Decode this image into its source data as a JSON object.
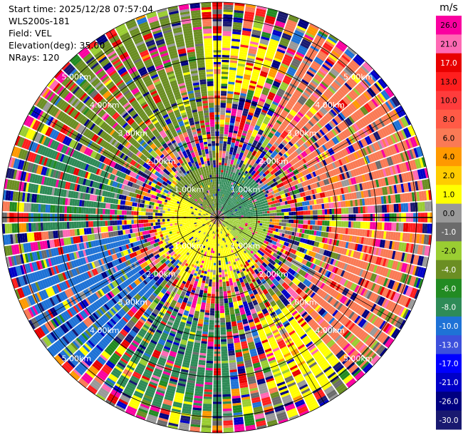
{
  "info": {
    "start_time": "Start time: 2025/12/28 07:57:04",
    "station": "WLS200s-181",
    "field": "Field: VEL",
    "elevation": "Elevation(deg): 35.00",
    "nrays": "NRays: 120"
  },
  "chart_data": {
    "type": "heatmap",
    "projection": "polar-ppi",
    "field": "VEL",
    "units": "m/s",
    "nrays": 120,
    "max_range_km": 5.4,
    "range_rings_km": [
      1,
      2,
      3,
      4,
      5
    ],
    "range_ring_labels": [
      "1.00km",
      "2.00km",
      "3.00km",
      "4.00km",
      "5.00km"
    ],
    "colorbar": {
      "title": "m/s",
      "ticks": [
        "26.0",
        "21.0",
        "17.0",
        "13.0",
        "10.0",
        "8.0",
        "6.0",
        "4.0",
        "2.0",
        "1.0",
        "0.0",
        "-1.0",
        "-2.0",
        "-4.0",
        "-6.0",
        "-8.0",
        "-10.0",
        "-13.0",
        "-17.0",
        "-21.0",
        "-26.0",
        "-30.0"
      ],
      "colors": [
        "#fa00a0",
        "#ff69b4",
        "#e80000",
        "#ff1e1e",
        "#ff3c3c",
        "#ff5a46",
        "#fa7a55",
        "#ff9900",
        "#ffcc00",
        "#ffff00",
        "#999999",
        "#6b6b6b",
        "#9acd32",
        "#6b8e23",
        "#228b22",
        "#2e8b57",
        "#1e72d6",
        "#3c50dc",
        "#0000ff",
        "#0000c8",
        "#000080",
        "#191970"
      ]
    },
    "sectors": [
      {
        "az_from": 300,
        "az_to": 355,
        "r_from_km": 2.3,
        "r_to_km": 5.2,
        "color": "#6b8e23"
      },
      {
        "az_from": 330,
        "az_to": 20,
        "r_from_km": 3.2,
        "r_to_km": 4.6,
        "color": "#ffff00"
      },
      {
        "az_from": 30,
        "az_to": 85,
        "r_from_km": 2.3,
        "r_to_km": 5.2,
        "color": "#fa7a55"
      },
      {
        "az_from": 95,
        "az_to": 140,
        "r_from_km": 2.8,
        "r_to_km": 5.2,
        "color": "#fa7a55"
      },
      {
        "az_from": 130,
        "az_to": 160,
        "r_from_km": 2.8,
        "r_to_km": 5.0,
        "color": "#ffff00"
      },
      {
        "az_from": 175,
        "az_to": 215,
        "r_from_km": 2.6,
        "r_to_km": 5.0,
        "color": "#2e8b57"
      },
      {
        "az_from": 220,
        "az_to": 260,
        "r_from_km": 2.3,
        "r_to_km": 5.2,
        "color": "#1e72d6"
      },
      {
        "az_from": 265,
        "az_to": 295,
        "r_from_km": 2.5,
        "r_to_km": 4.8,
        "color": "#2e8b57"
      },
      {
        "az_from": 0,
        "az_to": 90,
        "r_from_km": 0.2,
        "r_to_km": 1.3,
        "color": "#2e8b57"
      },
      {
        "az_from": 300,
        "az_to": 360,
        "r_from_km": 0.2,
        "r_to_km": 1.3,
        "color": "#6b8e23"
      },
      {
        "az_from": 90,
        "az_to": 140,
        "r_from_km": 0.2,
        "r_to_km": 1.3,
        "color": "#9acd32"
      },
      {
        "az_from": 140,
        "az_to": 300,
        "r_from_km": 0.2,
        "r_to_km": 1.6,
        "color": "#ffff00"
      }
    ]
  }
}
